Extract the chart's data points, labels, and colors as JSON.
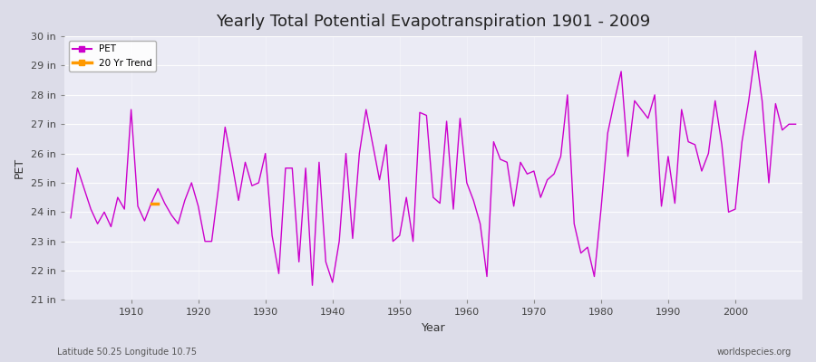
{
  "title": "Yearly Total Potential Evapotranspiration 1901 - 2009",
  "xlabel": "Year",
  "ylabel": "PET",
  "bottom_left": "Latitude 50.25 Longitude 10.75",
  "bottom_right": "worldspecies.org",
  "legend_pet": "PET",
  "legend_trend": "20 Yr Trend",
  "pet_color": "#cc00cc",
  "trend_color": "#ff9900",
  "bg_color": "#e8e8f0",
  "plot_bg": "#f0f0f8",
  "ylim": [
    21,
    30
  ],
  "yticks": [
    21,
    22,
    23,
    24,
    25,
    26,
    27,
    28,
    29,
    30
  ],
  "ytick_labels": [
    "21 in",
    "22 in",
    "23 in",
    "24 in",
    "25 in",
    "26 in",
    "27 in",
    "28 in",
    "29 in",
    "30 in"
  ],
  "xlim": [
    1900,
    2010
  ],
  "years": [
    1901,
    1902,
    1903,
    1904,
    1905,
    1906,
    1907,
    1908,
    1909,
    1910,
    1911,
    1912,
    1913,
    1914,
    1915,
    1916,
    1917,
    1918,
    1919,
    1920,
    1921,
    1922,
    1923,
    1924,
    1925,
    1926,
    1927,
    1928,
    1929,
    1930,
    1931,
    1932,
    1933,
    1934,
    1935,
    1936,
    1937,
    1938,
    1939,
    1940,
    1941,
    1942,
    1943,
    1944,
    1945,
    1946,
    1947,
    1948,
    1949,
    1950,
    1951,
    1952,
    1953,
    1954,
    1955,
    1956,
    1957,
    1958,
    1959,
    1960,
    1961,
    1962,
    1963,
    1964,
    1965,
    1966,
    1967,
    1968,
    1969,
    1970,
    1971,
    1972,
    1973,
    1974,
    1975,
    1976,
    1977,
    1978,
    1979,
    1980,
    1981,
    1982,
    1983,
    1984,
    1985,
    1986,
    1987,
    1988,
    1989,
    1990,
    1991,
    1992,
    1993,
    1994,
    1995,
    1996,
    1997,
    1998,
    1999,
    2000,
    2001,
    2002,
    2003,
    2004,
    2005,
    2006,
    2007,
    2008,
    2009
  ],
  "pet": [
    23.8,
    25.5,
    24.8,
    24.1,
    23.6,
    24.0,
    23.5,
    24.5,
    24.1,
    27.5,
    24.2,
    23.7,
    24.3,
    24.8,
    24.3,
    23.9,
    23.6,
    24.4,
    25.0,
    24.2,
    23.0,
    23.0,
    24.8,
    26.9,
    25.7,
    24.4,
    25.7,
    24.9,
    25.0,
    26.0,
    23.2,
    21.9,
    25.5,
    25.5,
    22.3,
    25.5,
    21.5,
    25.7,
    22.3,
    21.6,
    23.0,
    26.0,
    23.1,
    26.0,
    27.5,
    26.3,
    25.1,
    26.3,
    23.0,
    23.2,
    24.5,
    23.0,
    27.4,
    27.3,
    24.5,
    24.3,
    27.1,
    24.1,
    27.2,
    25.0,
    24.4,
    23.6,
    21.8,
    26.4,
    25.8,
    25.7,
    24.2,
    25.7,
    25.3,
    25.4,
    24.5,
    25.1,
    25.3,
    25.9,
    28.0,
    23.6,
    22.6,
    22.8,
    21.8,
    24.1,
    26.7,
    27.8,
    28.8,
    25.9,
    27.8,
    27.5,
    27.2,
    28.0,
    24.2,
    25.9,
    24.3,
    27.5,
    26.4,
    26.3,
    25.4,
    26.0,
    27.8,
    26.3,
    24.0,
    24.1,
    26.4,
    27.8,
    29.5,
    27.8,
    25.0,
    27.7,
    26.8,
    27.0,
    27.0
  ],
  "trend_years": [
    1913,
    1914
  ],
  "trend_values": [
    24.3,
    24.3
  ],
  "grid_color": "#ffffff",
  "grid_alpha": 0.7
}
